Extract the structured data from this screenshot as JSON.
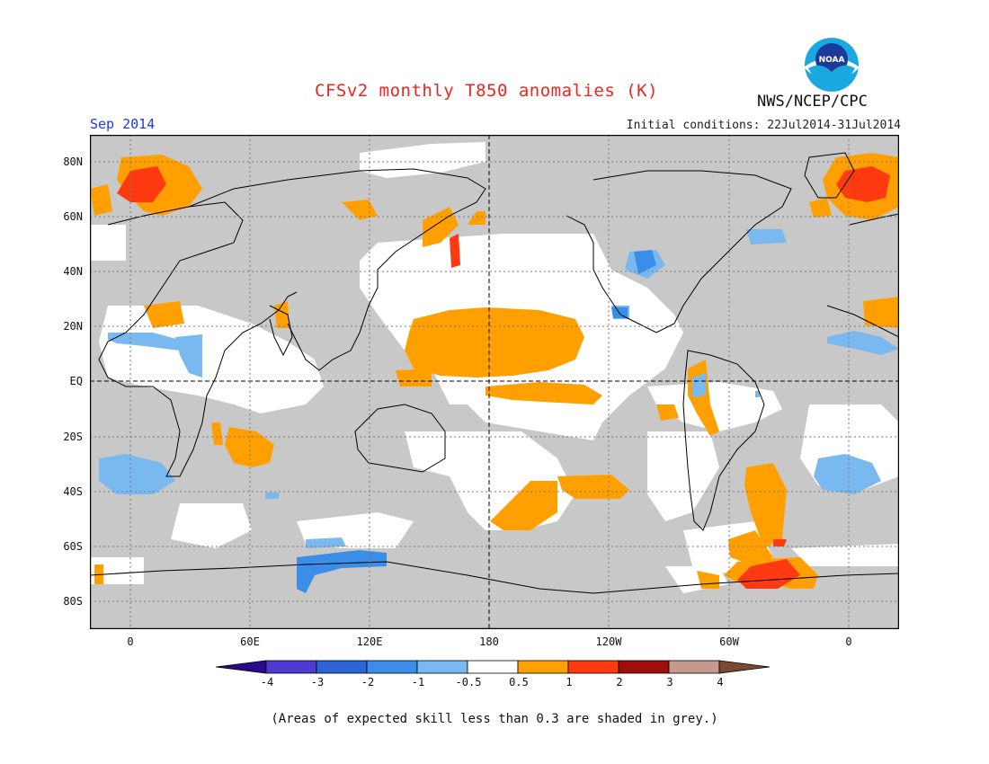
{
  "title": "CFSv2 monthly T850 anomalies (K)",
  "valid_month": "Sep 2014",
  "initial_conditions": "Initial conditions: 22Jul2014-31Jul2014",
  "agency": "NWS/NCEP/CPC",
  "logo_text": "NOAA",
  "footnote": "(Areas of expected skill less than 0.3 are shaded in grey.)",
  "lat_labels": [
    "80N",
    "60N",
    "40N",
    "20N",
    "EQ",
    "20S",
    "40S",
    "60S",
    "80S"
  ],
  "lon_labels": [
    "0",
    "60E",
    "120E",
    "180",
    "120W",
    "60W",
    "0"
  ],
  "colorbar": {
    "labels": [
      "-4",
      "-3",
      "-2",
      "-1",
      "-0.5",
      "0.5",
      "1",
      "2",
      "3",
      "4"
    ],
    "colors": [
      "#2b0a8a",
      "#4e3bd1",
      "#2a64d6",
      "#3b8ee8",
      "#7ab8f0",
      "#ffffff",
      "#ffa000",
      "#ff3a10",
      "#a00d0d",
      "#c49a8e",
      "#7a4a35"
    ]
  },
  "colors": {
    "grey_low_skill": "#c8c8c8",
    "warm_0_5_1": "#ffa000",
    "warm_1_2": "#ff3a10",
    "cool_0_5_1": "#7ab8f0",
    "cool_1_2": "#3b8ee8",
    "title": "#e8271f",
    "month": "#1f3be0"
  }
}
